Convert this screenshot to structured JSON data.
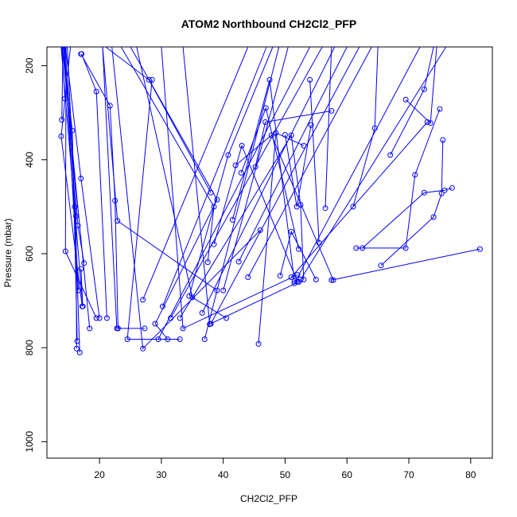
{
  "chart_data": {
    "type": "line",
    "title": "ATOM2 Northbound CH2Cl2_PFP",
    "xlabel": "CH2Cl2_PFP",
    "ylabel": "Pressure (mbar)",
    "xlim": [
      11.5,
      83.5
    ],
    "ylim": [
      1035,
      160
    ],
    "y_reversed": true,
    "x_ticks": [
      20,
      30,
      40,
      50,
      60,
      70,
      80
    ],
    "y_ticks": [
      200,
      400,
      600,
      800,
      1000
    ],
    "line_color": "#0000ff",
    "marker": "open-circle",
    "grid": false,
    "series": [
      {
        "x": [
          14.5,
          17.0,
          20.0
        ],
        "y": [
          160,
          440,
          737
        ]
      },
      {
        "x": [
          15.3,
          13.8,
          17.2
        ],
        "y": [
          160,
          350,
          712
        ]
      },
      {
        "x": [
          14.8,
          16.0,
          16.8
        ],
        "y": [
          160,
          500,
          810
        ]
      },
      {
        "x": [
          14.4,
          16.5,
          17.5
        ],
        "y": [
          160,
          540,
          620
        ]
      },
      {
        "x": [
          14.0,
          15.6,
          16.4
        ],
        "y": [
          160,
          338,
          786
        ]
      },
      {
        "x": [
          14.6,
          14.5,
          19.5
        ],
        "y": [
          160,
          595,
          737
        ]
      },
      {
        "x": [
          14.2,
          16.2,
          16.3
        ],
        "y": [
          160,
          520,
          802
        ]
      },
      {
        "x": [
          13.8,
          17.3,
          17.0
        ],
        "y": [
          160,
          712,
          632
        ]
      },
      {
        "x": [
          14.3,
          16.6
        ],
        "y": [
          160,
          678
        ]
      },
      {
        "x": [
          13.9,
          14.4
        ],
        "y": [
          160,
          270
        ]
      },
      {
        "x": [
          14.1,
          13.9
        ],
        "y": [
          160,
          315
        ]
      },
      {
        "x": [
          14.0,
          18.4
        ],
        "y": [
          160,
          759
        ]
      },
      {
        "x": [
          17.1,
          19.5,
          21.2
        ],
        "y": [
          175,
          255,
          737
        ]
      },
      {
        "x": [
          17.0,
          21.7,
          22.5,
          23.0
        ],
        "y": [
          175,
          285,
          487,
          759
        ]
      },
      {
        "x": [
          20.5,
          22.9,
          39.0
        ],
        "y": [
          160,
          530,
          678
        ]
      },
      {
        "x": [
          20.5,
          22.8,
          27.3
        ],
        "y": [
          160,
          759,
          759
        ]
      },
      {
        "x": [
          28.5,
          24.5,
          33.0
        ],
        "y": [
          230,
          782,
          782
        ]
      },
      {
        "x": [
          21.0,
          28.0,
          38.0
        ],
        "y": [
          160,
          230,
          470
        ]
      },
      {
        "x": [
          22.0,
          27.0,
          46.0
        ],
        "y": [
          160,
          802,
          550
        ]
      },
      {
        "x": [
          25.0,
          39.0,
          29.0,
          31.0
        ],
        "y": [
          160,
          485,
          749,
          782
        ]
      },
      {
        "x": [
          23.5,
          38.5,
          37.5
        ],
        "y": [
          160,
          500,
          618
        ]
      },
      {
        "x": [
          26.0,
          35.0,
          40.5
        ],
        "y": [
          160,
          693,
          737
        ]
      },
      {
        "x": [
          30.0,
          33.5,
          52.0
        ],
        "y": [
          160,
          759,
          645
        ]
      },
      {
        "x": [
          33.5,
          37.8,
          52.2
        ],
        "y": [
          160,
          750,
          660
        ]
      },
      {
        "x": [
          27.0,
          44.0
        ],
        "y": [
          698,
          160
        ]
      },
      {
        "x": [
          30.2,
          47.0
        ],
        "y": [
          712,
          160
        ]
      },
      {
        "x": [
          34.5,
          40.8,
          48.0
        ],
        "y": [
          690,
          390,
          160
        ]
      },
      {
        "x": [
          37.0,
          49.0
        ],
        "y": [
          782,
          160
        ]
      },
      {
        "x": [
          29.5,
          54.0
        ],
        "y": [
          782,
          160
        ]
      },
      {
        "x": [
          40.0,
          50.5
        ],
        "y": [
          678,
          160
        ]
      },
      {
        "x": [
          31.5,
          56.0
        ],
        "y": [
          737,
          160
        ]
      },
      {
        "x": [
          36.6,
          58.0
        ],
        "y": [
          726,
          160
        ]
      },
      {
        "x": [
          42.5,
          60.0
        ],
        "y": [
          617,
          160
        ]
      },
      {
        "x": [
          38.0,
          62.0
        ],
        "y": [
          749,
          160
        ]
      },
      {
        "x": [
          44.0,
          64.0
        ],
        "y": [
          650,
          160
        ]
      },
      {
        "x": [
          33.0,
          51.0,
          52.5,
          53.0
        ],
        "y": [
          737,
          348,
          496,
          655
        ]
      },
      {
        "x": [
          38.5,
          43.0,
          52.0
        ],
        "y": [
          580,
          370,
          660
        ]
      },
      {
        "x": [
          41.5,
          47.5,
          51.5
        ],
        "y": [
          528,
          230,
          658
        ]
      },
      {
        "x": [
          42.0,
          47.8,
          57.8
        ],
        "y": [
          412,
          348,
          656
        ]
      },
      {
        "x": [
          42.9,
          46.9,
          52.2
        ],
        "y": [
          428,
          290,
          590
        ]
      },
      {
        "x": [
          45.2,
          46.8,
          57.5
        ],
        "y": [
          415,
          320,
          296
        ]
      },
      {
        "x": [
          45.7,
          48.5,
          53.0
        ],
        "y": [
          792,
          343,
          370
        ]
      },
      {
        "x": [
          49.2,
          51.0,
          55.0
        ],
        "y": [
          647,
          553,
          655
        ]
      },
      {
        "x": [
          50.0,
          51.9,
          54.2
        ],
        "y": [
          347,
          500,
          326
        ]
      },
      {
        "x": [
          54.0,
          55.5
        ],
        "y": [
          230,
          577
        ]
      },
      {
        "x": [
          56.5,
          57.5
        ],
        "y": [
          503,
          160
        ]
      },
      {
        "x": [
          61.0,
          64.5,
          65.0
        ],
        "y": [
          500,
          333,
          160
        ]
      },
      {
        "x": [
          67.0,
          72.5,
          74.0
        ],
        "y": [
          390,
          250,
          160
        ]
      },
      {
        "x": [
          69.5,
          73.5,
          74.5
        ],
        "y": [
          272,
          322,
          160
        ]
      },
      {
        "x": [
          61.5,
          69.5,
          71.0,
          75.0
        ],
        "y": [
          588,
          588,
          432,
          292
        ]
      },
      {
        "x": [
          62.5,
          72.5,
          75.8,
          77.0
        ],
        "y": [
          588,
          470,
          465,
          460
        ]
      },
      {
        "x": [
          65.5,
          74.0,
          75.3,
          75.5
        ],
        "y": [
          625,
          522,
          472,
          358
        ]
      },
      {
        "x": [
          57.5,
          81.5
        ],
        "y": [
          656,
          590
        ]
      },
      {
        "x": [
          52.5,
          76.0
        ],
        "y": [
          655,
          160
        ]
      },
      {
        "x": [
          51.0,
          73.0
        ],
        "y": [
          650,
          320
        ]
      },
      {
        "x": [
          51.5,
          71.8
        ],
        "y": [
          663,
          160
        ]
      }
    ]
  }
}
